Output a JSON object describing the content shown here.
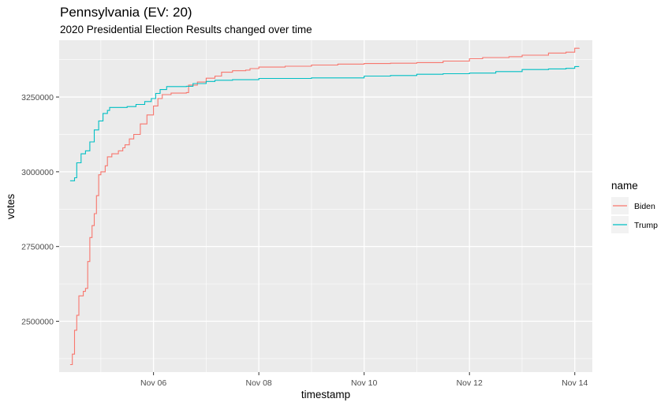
{
  "chart_data": {
    "type": "line",
    "title": "Pennsylvania (EV: 20)",
    "subtitle": "2020 Presidential Election Results changed over time",
    "xlabel": "timestamp",
    "ylabel": "votes",
    "x_tick_labels": [
      "Nov 06",
      "Nov 08",
      "Nov 10",
      "Nov 12",
      "Nov 14"
    ],
    "x_tick_values": [
      "2020-11-06",
      "2020-11-08",
      "2020-11-10",
      "2020-11-12",
      "2020-11-14"
    ],
    "y_tick_labels": [
      "2500000",
      "2750000",
      "3000000",
      "3250000"
    ],
    "y_tick_values": [
      2500000,
      2750000,
      3000000,
      3250000
    ],
    "xlim": [
      "2020-11-04T05:00",
      "2020-11-14T08:00"
    ],
    "ylim": [
      2330000,
      3440000
    ],
    "grid": true,
    "legend_title": "name",
    "legend_position": "right",
    "series": [
      {
        "name": "Biden",
        "color": "#F8766D",
        "points": [
          [
            "2020-11-04T10:00",
            2355000
          ],
          [
            "2020-11-04T11:00",
            2390000
          ],
          [
            "2020-11-04T12:00",
            2470000
          ],
          [
            "2020-11-04T13:00",
            2520000
          ],
          [
            "2020-11-04T14:00",
            2585000
          ],
          [
            "2020-11-04T16:00",
            2600000
          ],
          [
            "2020-11-04T17:00",
            2610000
          ],
          [
            "2020-11-04T18:00",
            2700000
          ],
          [
            "2020-11-04T19:00",
            2780000
          ],
          [
            "2020-11-04T20:00",
            2820000
          ],
          [
            "2020-11-04T21:00",
            2860000
          ],
          [
            "2020-11-04T22:00",
            2920000
          ],
          [
            "2020-11-04T23:00",
            2990000
          ],
          [
            "2020-11-05T00:00",
            3000000
          ],
          [
            "2020-11-05T02:00",
            3020000
          ],
          [
            "2020-11-05T03:00",
            3050000
          ],
          [
            "2020-11-05T05:00",
            3060000
          ],
          [
            "2020-11-05T08:00",
            3070000
          ],
          [
            "2020-11-05T10:00",
            3080000
          ],
          [
            "2020-11-05T11:00",
            3090000
          ],
          [
            "2020-11-05T13:00",
            3110000
          ],
          [
            "2020-11-05T15:00",
            3125000
          ],
          [
            "2020-11-05T18:00",
            3160000
          ],
          [
            "2020-11-05T21:00",
            3190000
          ],
          [
            "2020-11-06T00:00",
            3220000
          ],
          [
            "2020-11-06T02:00",
            3245000
          ],
          [
            "2020-11-06T04:00",
            3258000
          ],
          [
            "2020-11-06T08:00",
            3263000
          ],
          [
            "2020-11-06T15:00",
            3265000
          ],
          [
            "2020-11-06T16:00",
            3290000
          ],
          [
            "2020-11-06T20:00",
            3300000
          ],
          [
            "2020-11-07T00:00",
            3313000
          ],
          [
            "2020-11-07T04:00",
            3320000
          ],
          [
            "2020-11-07T07:00",
            3333000
          ],
          [
            "2020-11-07T12:00",
            3338000
          ],
          [
            "2020-11-07T18:00",
            3340000
          ],
          [
            "2020-11-07T20:00",
            3345000
          ],
          [
            "2020-11-08T00:00",
            3350000
          ],
          [
            "2020-11-08T12:00",
            3353000
          ],
          [
            "2020-11-09T00:00",
            3357000
          ],
          [
            "2020-11-09T12:00",
            3360000
          ],
          [
            "2020-11-10T00:00",
            3362000
          ],
          [
            "2020-11-10T12:00",
            3363000
          ],
          [
            "2020-11-11T00:00",
            3365000
          ],
          [
            "2020-11-11T12:00",
            3370000
          ],
          [
            "2020-11-12T00:00",
            3378000
          ],
          [
            "2020-11-12T06:00",
            3382000
          ],
          [
            "2020-11-12T18:00",
            3385000
          ],
          [
            "2020-11-13T00:00",
            3390000
          ],
          [
            "2020-11-13T12:00",
            3397000
          ],
          [
            "2020-11-13T20:00",
            3400000
          ],
          [
            "2020-11-14T00:00",
            3413000
          ],
          [
            "2020-11-14T02:00",
            3414000
          ]
        ]
      },
      {
        "name": "Trump",
        "color": "#00BFC4",
        "points": [
          [
            "2020-11-04T10:00",
            2970000
          ],
          [
            "2020-11-04T12:00",
            2980000
          ],
          [
            "2020-11-04T13:00",
            3030000
          ],
          [
            "2020-11-04T15:00",
            3060000
          ],
          [
            "2020-11-04T17:00",
            3070000
          ],
          [
            "2020-11-04T19:00",
            3100000
          ],
          [
            "2020-11-04T21:00",
            3140000
          ],
          [
            "2020-11-04T23:00",
            3170000
          ],
          [
            "2020-11-05T01:00",
            3195000
          ],
          [
            "2020-11-05T03:00",
            3205000
          ],
          [
            "2020-11-05T04:00",
            3215000
          ],
          [
            "2020-11-05T12:00",
            3218000
          ],
          [
            "2020-11-05T16:00",
            3225000
          ],
          [
            "2020-11-05T20:00",
            3235000
          ],
          [
            "2020-11-05T23:00",
            3245000
          ],
          [
            "2020-11-06T01:00",
            3262000
          ],
          [
            "2020-11-06T03:00",
            3275000
          ],
          [
            "2020-11-06T06:00",
            3285000
          ],
          [
            "2020-11-06T15:00",
            3286000
          ],
          [
            "2020-11-06T18:00",
            3295000
          ],
          [
            "2020-11-07T00:00",
            3302000
          ],
          [
            "2020-11-07T04:00",
            3306000
          ],
          [
            "2020-11-07T12:00",
            3308000
          ],
          [
            "2020-11-08T00:00",
            3312000
          ],
          [
            "2020-11-09T00:00",
            3314000
          ],
          [
            "2020-11-10T00:00",
            3320000
          ],
          [
            "2020-11-10T12:00",
            3322000
          ],
          [
            "2020-11-11T00:00",
            3326000
          ],
          [
            "2020-11-11T12:00",
            3328000
          ],
          [
            "2020-11-12T00:00",
            3330000
          ],
          [
            "2020-11-12T12:00",
            3335000
          ],
          [
            "2020-11-13T00:00",
            3342000
          ],
          [
            "2020-11-13T12:00",
            3344000
          ],
          [
            "2020-11-13T20:00",
            3346000
          ],
          [
            "2020-11-14T00:00",
            3352000
          ],
          [
            "2020-11-14T02:00",
            3352000
          ]
        ]
      }
    ]
  }
}
